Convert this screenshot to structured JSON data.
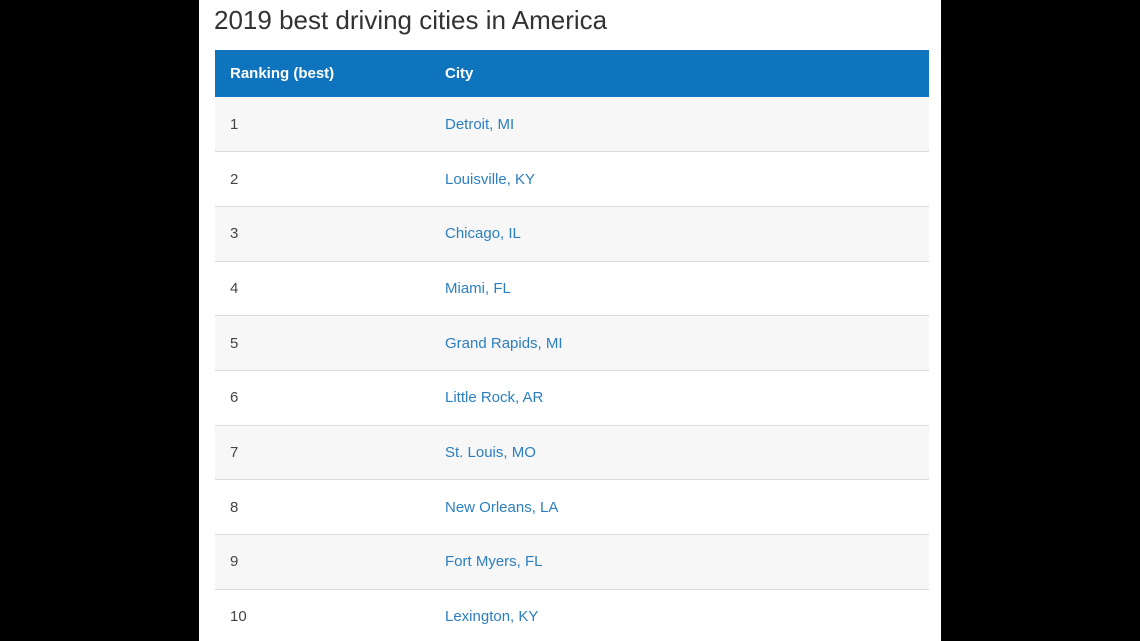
{
  "title": "2019 best driving cities in America",
  "table": {
    "headers": [
      "Ranking (best)",
      "City"
    ],
    "rows": [
      {
        "rank": "1",
        "city": "Detroit, MI"
      },
      {
        "rank": "2",
        "city": "Louisville, KY"
      },
      {
        "rank": "3",
        "city": "Chicago, IL"
      },
      {
        "rank": "4",
        "city": "Miami, FL"
      },
      {
        "rank": "5",
        "city": "Grand Rapids, MI"
      },
      {
        "rank": "6",
        "city": "Little Rock, AR"
      },
      {
        "rank": "7",
        "city": "St. Louis, MO"
      },
      {
        "rank": "8",
        "city": "New Orleans, LA"
      },
      {
        "rank": "9",
        "city": "Fort Myers, FL"
      },
      {
        "rank": "10",
        "city": "Lexington, KY"
      }
    ]
  },
  "colors": {
    "header_bg": "#0f74be",
    "link": "#2b7fc0",
    "stripe": "#f7f7f7"
  }
}
